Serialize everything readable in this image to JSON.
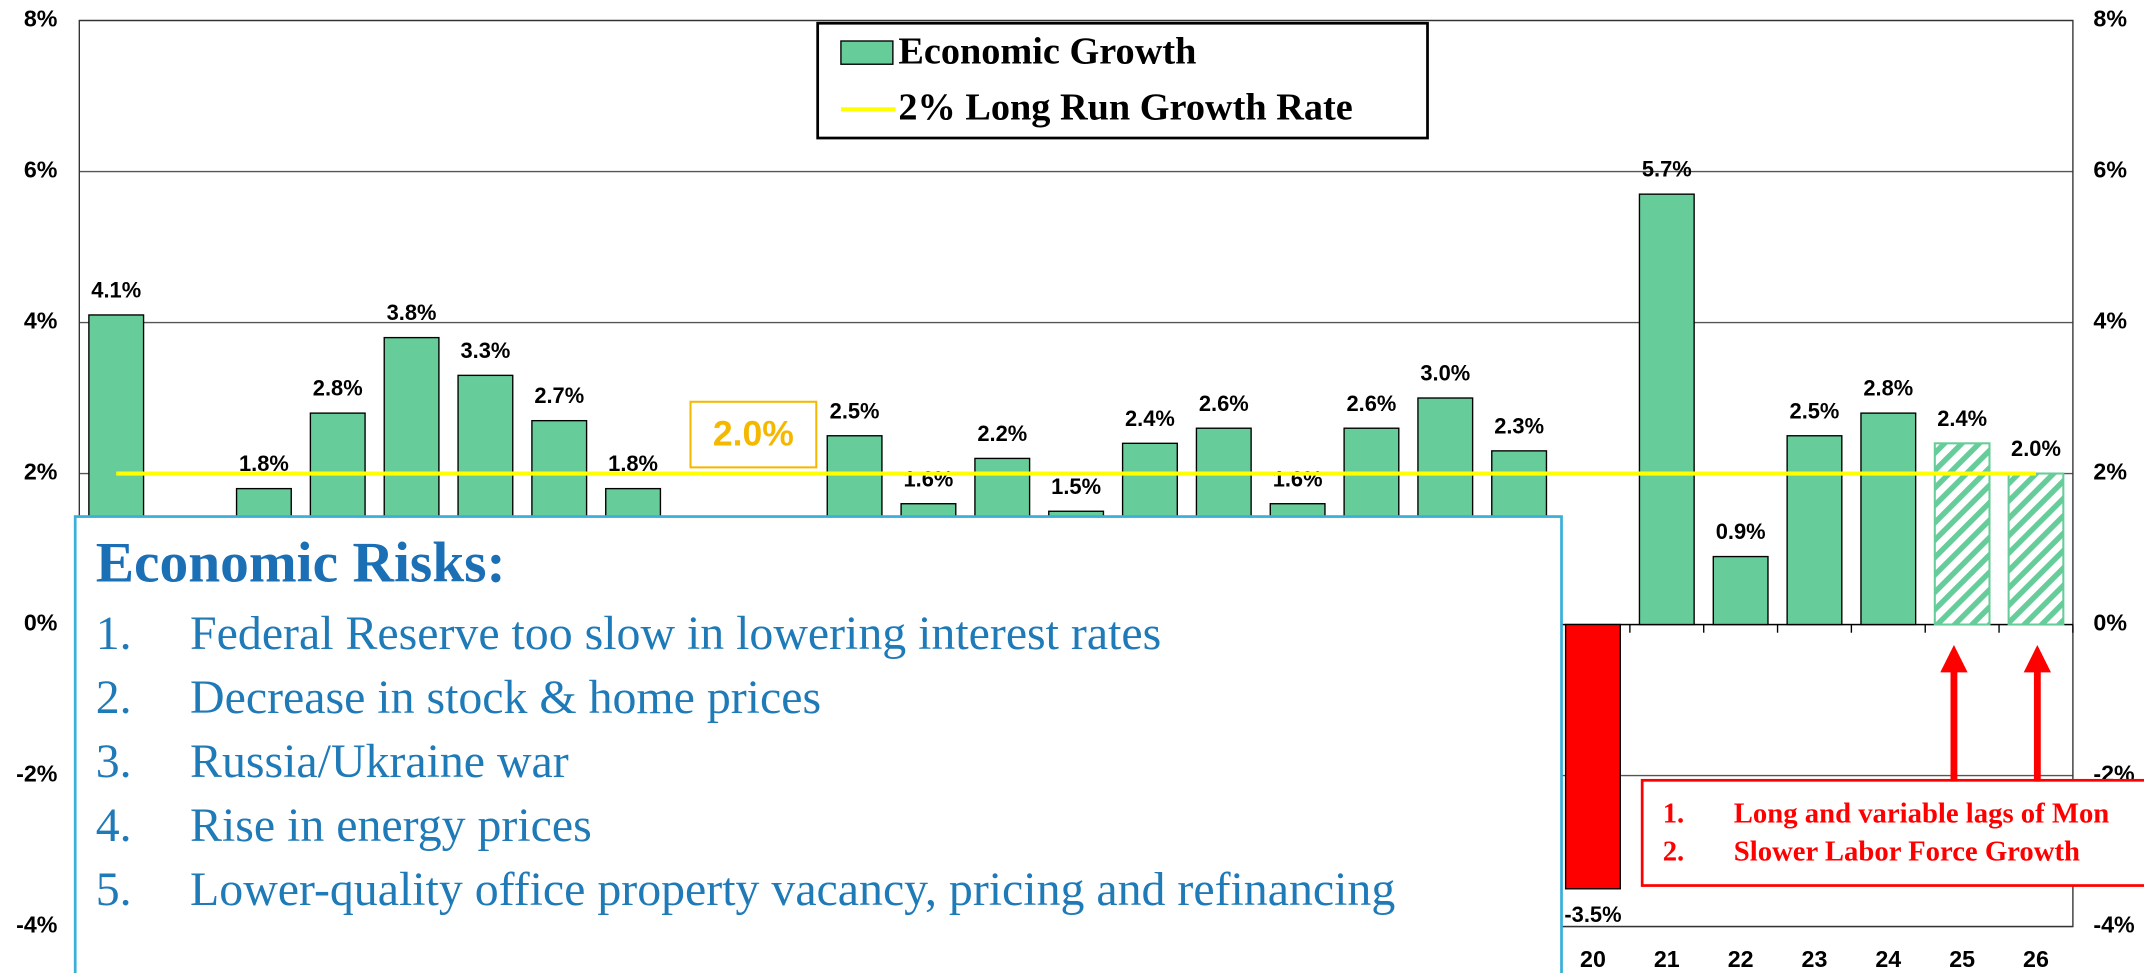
{
  "chart_data": {
    "type": "bar",
    "series": [
      {
        "name": "Economic Growth",
        "color": "#66cc99",
        "negative_color": "#ff0000",
        "values": [
          4.1,
          null,
          1.8,
          2.8,
          3.8,
          3.3,
          2.7,
          1.8,
          null,
          null,
          2.5,
          1.6,
          2.2,
          1.5,
          2.4,
          2.6,
          1.6,
          2.6,
          3.0,
          2.3,
          -3.5,
          5.7,
          0.9,
          2.5,
          2.8,
          2.4,
          2.0
        ],
        "value_labels": [
          "4.1%",
          null,
          "1.8%",
          "2.8%",
          "3.8%",
          "3.3%",
          "2.7%",
          "1.8%",
          null,
          null,
          "2.5%",
          "1.6%",
          "2.2%",
          "1.5%",
          "2.4%",
          "2.6%",
          "1.6%",
          "2.6%",
          "3.0%",
          "2.3%",
          "-3.5%",
          "5.7%",
          "0.9%",
          "2.5%",
          "2.8%",
          "2.4%",
          "2.0%"
        ]
      }
    ],
    "categories": [
      null,
      null,
      null,
      null,
      null,
      null,
      null,
      null,
      null,
      null,
      null,
      null,
      null,
      null,
      null,
      null,
      null,
      null,
      null,
      null,
      "20",
      "21",
      "22",
      "23",
      "24",
      "25",
      "26"
    ],
    "hatched_categories": [
      "25",
      "26"
    ],
    "reference_line": {
      "name": "2% Long Run Growth Rate",
      "value": 2,
      "color": "#ffff00"
    },
    "ylim": [
      -4,
      8
    ],
    "yticks": [
      {
        "value": -4,
        "label": "-4%"
      },
      {
        "value": -2,
        "label": "-2%"
      },
      {
        "value": 0,
        "label": "0%"
      },
      {
        "value": 2,
        "label": "2%"
      },
      {
        "value": 4,
        "label": "4%"
      },
      {
        "value": 6,
        "label": "6%"
      },
      {
        "value": 8,
        "label": "8%"
      }
    ],
    "y2_mirror": true,
    "grid": true,
    "legend": "top",
    "annotation": "2.0%",
    "risks": {
      "title": "Economic Risks:",
      "items": [
        {
          "num": "1.",
          "text": "Federal Reserve too slow in lowering interest rates"
        },
        {
          "num": "2.",
          "text": "Decrease in stock & home prices"
        },
        {
          "num": "3.",
          "text": "Russia/Ukraine war"
        },
        {
          "num": "4.",
          "text": "Rise in energy prices"
        },
        {
          "num": "5.",
          "text": "Lower-quality office property vacancy, pricing and refinancing"
        }
      ]
    },
    "forecast_notes": [
      {
        "num": "1.",
        "text": "Long and variable lags of Mon"
      },
      {
        "num": "2.",
        "text": "Slower Labor Force Growth"
      }
    ]
  }
}
